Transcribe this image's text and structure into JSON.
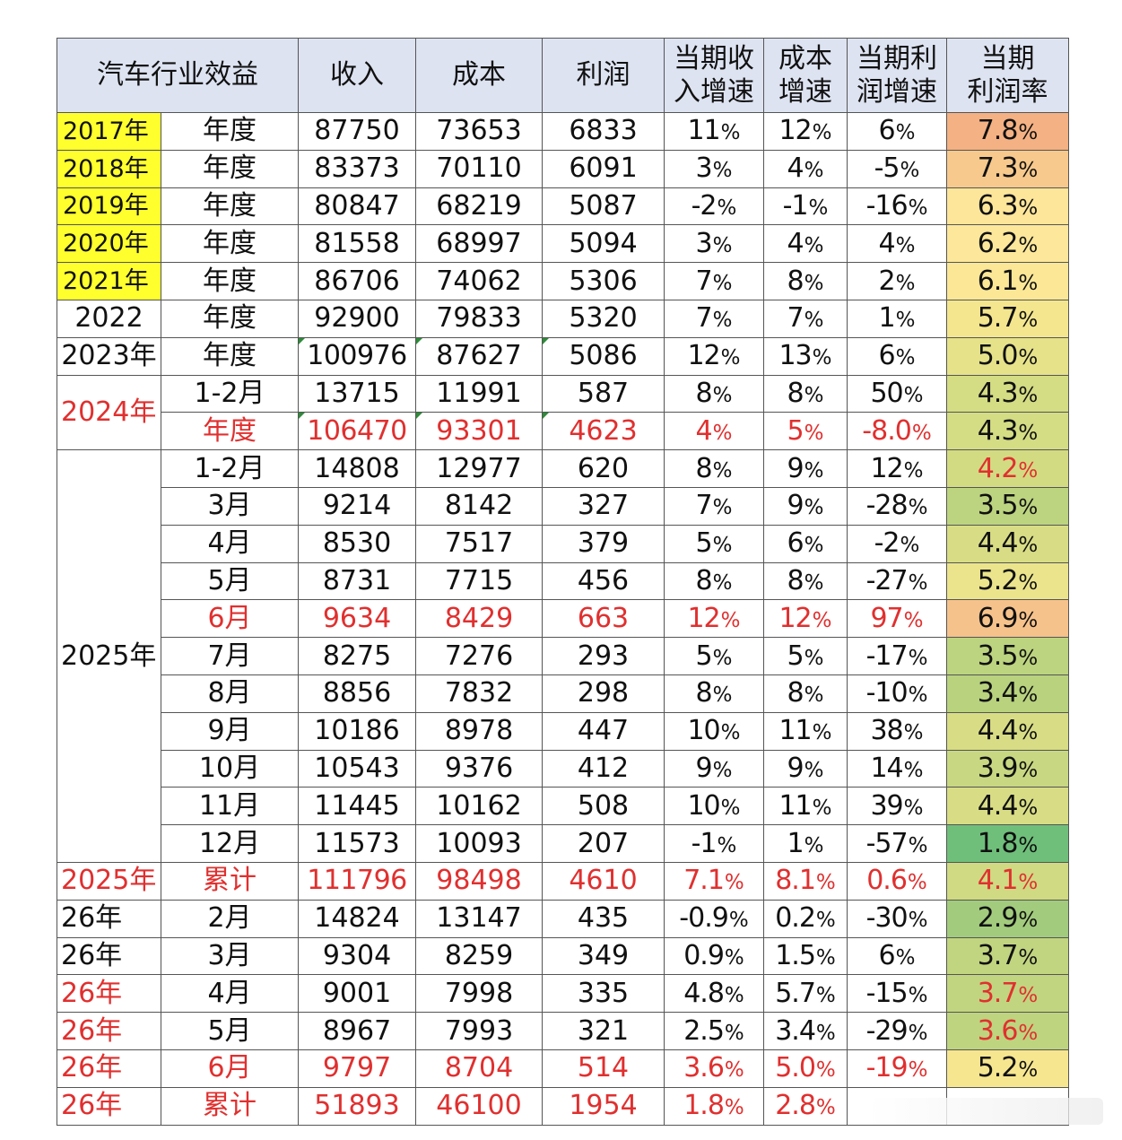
{
  "headers": [
    "汽车行业效益",
    "收入",
    "成本",
    "利润",
    "当期收入增速",
    "成本增速",
    "当期利润增速",
    "当期利润率"
  ],
  "header_lines": [
    [
      "汽车行业效益"
    ],
    [
      "收入"
    ],
    [
      "成本"
    ],
    [
      "利润"
    ],
    [
      "当期收",
      "入增速"
    ],
    [
      "成本",
      "增速"
    ],
    [
      "当期利",
      "润增速"
    ],
    [
      "当期",
      "利润率"
    ]
  ],
  "colors": {
    "header_bg": "#dde3f1",
    "year_highlight": "#ffff2e",
    "red_text": "#e0302f",
    "margin_scale": [
      "#63be7b",
      "#ffeb84",
      "#f8696b"
    ]
  },
  "rows": [
    {
      "year": "2017年",
      "year_style": "yellow",
      "period": "年度",
      "revenue": "87750",
      "cost": "73653",
      "profit": "6833",
      "rev_growth": "11%",
      "cost_growth": "12%",
      "profit_growth": "6%",
      "margin": "7.8%",
      "margin_bg": "#f4b183"
    },
    {
      "year": "2018年",
      "year_style": "yellow",
      "period": "年度",
      "revenue": "83373",
      "cost": "70110",
      "profit": "6091",
      "rev_growth": "3%",
      "cost_growth": "4%",
      "profit_growth": "-5%",
      "margin": "7.3%",
      "margin_bg": "#f7c98c"
    },
    {
      "year": "2019年",
      "year_style": "yellow",
      "period": "年度",
      "revenue": "80847",
      "cost": "68219",
      "profit": "5087",
      "rev_growth": "-2%",
      "cost_growth": "-1%",
      "profit_growth": "-16%",
      "margin": "6.3%",
      "margin_bg": "#fde59a"
    },
    {
      "year": "2020年",
      "year_style": "yellow",
      "period": "年度",
      "revenue": "81558",
      "cost": "68997",
      "profit": "5094",
      "rev_growth": "3%",
      "cost_growth": "4%",
      "profit_growth": "4%",
      "margin": "6.2%",
      "margin_bg": "#fde79a"
    },
    {
      "year": "2021年",
      "year_style": "yellow",
      "period": "年度",
      "revenue": "86706",
      "cost": "74062",
      "profit": "5306",
      "rev_growth": "7%",
      "cost_growth": "8%",
      "profit_growth": "2%",
      "margin": "6.1%",
      "margin_bg": "#fbe796"
    },
    {
      "year": "2022",
      "year_style": "plain",
      "period": "年度",
      "revenue": "92900",
      "cost": "79833",
      "profit": "5320",
      "rev_growth": "7%",
      "cost_growth": "7%",
      "profit_growth": "1%",
      "margin": "5.7%",
      "margin_bg": "#f4e68e"
    },
    {
      "year": "2023年",
      "year_style": "plain",
      "period": "年度",
      "revenue": "100976",
      "cost": "87627",
      "profit": "5086",
      "rev_growth": "12%",
      "cost_growth": "13%",
      "profit_growth": "6%",
      "margin": "5.0%",
      "margin_bg": "#e5e28a",
      "flags": true
    },
    {
      "year": "2024年",
      "year_style": "red",
      "year_span": 2,
      "period": "1-2月",
      "revenue": "13715",
      "cost": "11991",
      "profit": "587",
      "rev_growth": "8%",
      "cost_growth": "8%",
      "profit_growth": "50%",
      "margin": "4.3%",
      "margin_bg": "#d4dc84"
    },
    {
      "period": "年度",
      "red": true,
      "revenue": "106470",
      "cost": "93301",
      "profit": "4623",
      "rev_growth": "4%",
      "cost_growth": "5%",
      "profit_growth": "-8.0%",
      "margin": "4.3%",
      "margin_bg": "#d4dc84",
      "margin_text": "dark",
      "flags": true
    },
    {
      "year": "2025年",
      "year_style": "plain",
      "year_span": 11,
      "period": "1-2月",
      "revenue": "14808",
      "cost": "12977",
      "profit": "620",
      "rev_growth": "8%",
      "cost_growth": "9%",
      "profit_growth": "12%",
      "margin": "4.2%",
      "margin_bg": "#d3db82",
      "margin_red": true
    },
    {
      "period": "3月",
      "revenue": "9214",
      "cost": "8142",
      "profit": "327",
      "rev_growth": "7%",
      "cost_growth": "9%",
      "profit_growth": "-28%",
      "margin": "3.5%",
      "margin_bg": "#bcd47f"
    },
    {
      "period": "4月",
      "revenue": "8530",
      "cost": "7517",
      "profit": "379",
      "rev_growth": "5%",
      "cost_growth": "6%",
      "profit_growth": "-2%",
      "margin": "4.4%",
      "margin_bg": "#d8dd85"
    },
    {
      "period": "5月",
      "revenue": "8731",
      "cost": "7715",
      "profit": "456",
      "rev_growth": "8%",
      "cost_growth": "8%",
      "profit_growth": "-27%",
      "margin": "5.2%",
      "margin_bg": "#ebe48c"
    },
    {
      "period": "6月",
      "red": true,
      "revenue": "9634",
      "cost": "8429",
      "profit": "663",
      "rev_growth": "12%",
      "cost_growth": "12%",
      "profit_growth": "97%",
      "margin": "6.9%",
      "margin_bg": "#f6c28b",
      "margin_text": "dark"
    },
    {
      "period": "7月",
      "revenue": "8275",
      "cost": "7276",
      "profit": "293",
      "rev_growth": "5%",
      "cost_growth": "5%",
      "profit_growth": "-17%",
      "margin": "3.5%",
      "margin_bg": "#bcd47f"
    },
    {
      "period": "8月",
      "revenue": "8856",
      "cost": "7832",
      "profit": "298",
      "rev_growth": "8%",
      "cost_growth": "8%",
      "profit_growth": "-10%",
      "margin": "3.4%",
      "margin_bg": "#b8d27e"
    },
    {
      "period": "9月",
      "revenue": "10186",
      "cost": "8978",
      "profit": "447",
      "rev_growth": "10%",
      "cost_growth": "11%",
      "profit_growth": "38%",
      "margin": "4.4%",
      "margin_bg": "#d8dd85"
    },
    {
      "period": "10月",
      "revenue": "10543",
      "cost": "9376",
      "profit": "412",
      "rev_growth": "9%",
      "cost_growth": "9%",
      "profit_growth": "14%",
      "margin": "3.9%",
      "margin_bg": "#c8d882"
    },
    {
      "period": "11月",
      "revenue": "11445",
      "cost": "10162",
      "profit": "508",
      "rev_growth": "10%",
      "cost_growth": "11%",
      "profit_growth": "39%",
      "margin": "4.4%",
      "margin_bg": "#d8dd85"
    },
    {
      "period": "12月",
      "revenue": "11573",
      "cost": "10093",
      "profit": "207",
      "rev_growth": "-1%",
      "cost_growth": "1%",
      "profit_growth": "-57%",
      "margin": "1.8%",
      "margin_bg": "#6fbf7b"
    },
    {
      "year": "2025年",
      "year_style": "red",
      "period": "累计",
      "red": true,
      "revenue": "111796",
      "cost": "98498",
      "profit": "4610",
      "rev_growth": "7.1%",
      "cost_growth": "8.1%",
      "profit_growth": "0.6%",
      "margin": "4.1%",
      "margin_bg": "#cfda83",
      "margin_red": true
    },
    {
      "year": "26年",
      "year_style": "plain",
      "period": "2月",
      "revenue": "14824",
      "cost": "13147",
      "profit": "435",
      "rev_growth": "-0.9%",
      "cost_growth": "0.2%",
      "profit_growth": "-30%",
      "margin": "2.9%",
      "margin_bg": "#a2cb7d"
    },
    {
      "year": "26年",
      "year_style": "plain",
      "period": "3月",
      "revenue": "9304",
      "cost": "8259",
      "profit": "349",
      "rev_growth": "0.9%",
      "cost_growth": "1.5%",
      "profit_growth": "6%",
      "margin": "3.7%",
      "margin_bg": "#c1d580"
    },
    {
      "year": "26年",
      "year_style": "red",
      "period": "4月",
      "revenue": "9001",
      "cost": "7998",
      "profit": "335",
      "rev_growth": "4.8%",
      "cost_growth": "5.7%",
      "profit_growth": "-15%",
      "margin": "3.7%",
      "margin_bg": "#c1d580",
      "margin_red": true
    },
    {
      "year": "26年",
      "year_style": "red",
      "period": "5月",
      "revenue": "8967",
      "cost": "7993",
      "profit": "321",
      "rev_growth": "2.5%",
      "cost_growth": "3.4%",
      "profit_growth": "-29%",
      "margin": "3.6%",
      "margin_bg": "#bed47f",
      "margin_red": true
    },
    {
      "year": "26年",
      "year_style": "red",
      "period": "6月",
      "red": true,
      "revenue": "9797",
      "cost": "8704",
      "profit": "514",
      "rev_growth": "3.6%",
      "cost_growth": "5.0%",
      "profit_growth": "-19%",
      "margin": "5.2%",
      "margin_bg": "#f6e690"
    },
    {
      "year": "26年",
      "year_style": "red",
      "period": "累计",
      "red": true,
      "revenue": "51893",
      "cost": "46100",
      "profit": "1954",
      "rev_growth": "1.8%",
      "cost_growth": "2.8%",
      "profit_growth": "",
      "margin": "",
      "margin_bg": "#ffffff",
      "watermark": true
    }
  ]
}
